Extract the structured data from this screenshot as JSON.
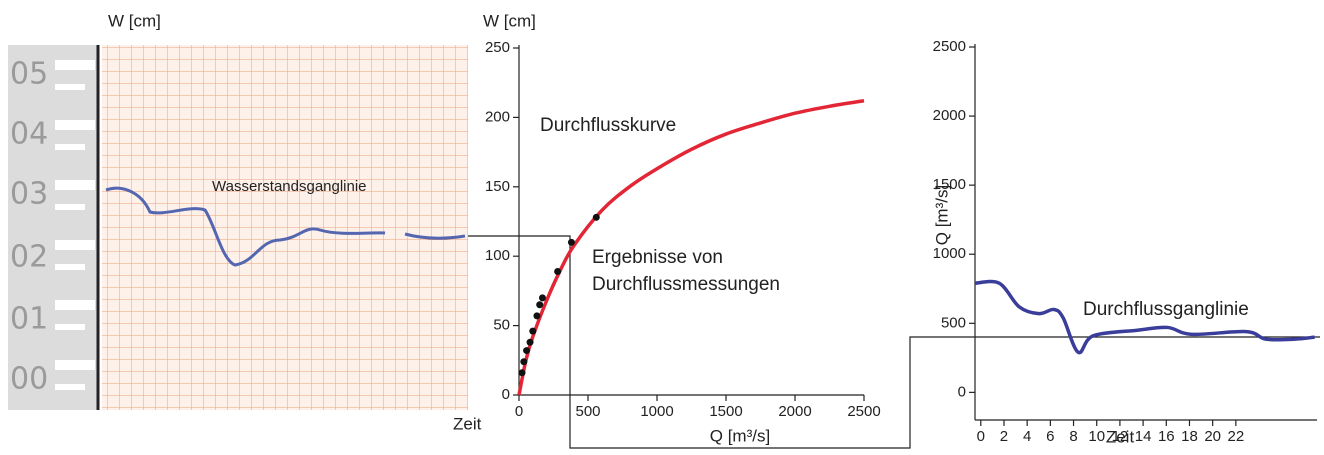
{
  "gauge": {
    "axis_label": "W [cm]",
    "staff_labels": [
      "05",
      "04",
      "03",
      "02",
      "01",
      "00"
    ],
    "annotation": "Wasserstandsganglinie",
    "time_label": "Zeit"
  },
  "chart_data": [
    {
      "type": "line",
      "y_label": "W [cm]",
      "x_label": "Q [m³/s]",
      "annotations": [
        "Durchflusskurve",
        "Ergebnisse von",
        "Durchflussmessungen"
      ],
      "xlim": [
        0,
        2500
      ],
      "xticks": [
        0,
        500,
        1000,
        1500,
        2000,
        2500
      ],
      "ylim": [
        0,
        250
      ],
      "yticks": [
        0,
        50,
        100,
        150,
        200,
        250
      ],
      "series": [
        {
          "kind": "line",
          "color": "#e32636",
          "x": [
            0,
            50,
            100,
            200,
            300,
            400,
            600,
            800,
            1000,
            1250,
            1500,
            1750,
            2000,
            2250,
            2500
          ],
          "values": [
            0,
            25,
            42,
            68,
            90,
            108,
            133,
            150,
            163,
            177,
            188,
            196,
            203,
            208,
            212
          ]
        },
        {
          "kind": "scatter",
          "color": "#111111",
          "x": [
            22,
            35,
            55,
            80,
            100,
            130,
            150,
            170,
            280,
            380,
            560
          ],
          "values": [
            16,
            24,
            32,
            38,
            46,
            57,
            65,
            70,
            89,
            110,
            128
          ]
        }
      ]
    },
    {
      "type": "line",
      "y_label": "Q [m³/s]",
      "x_label": "Zeit",
      "annotations": [
        "Durchflussganglinie"
      ],
      "xlim": [
        -0.5,
        29
      ],
      "xticks": [
        0,
        2,
        4,
        6,
        8,
        10,
        12,
        14,
        16,
        18,
        20,
        22
      ],
      "ylim": [
        -200,
        2500
      ],
      "yticks": [
        0,
        500,
        1000,
        1500,
        2000,
        2500
      ],
      "series": [
        {
          "kind": "line",
          "color": "#3a3d9a",
          "x": [
            -0.5,
            1.6,
            3.3,
            5,
            6.3,
            7.1,
            8.4,
            9.7,
            13.5,
            16.1,
            18.2,
            22.9,
            24.6,
            27.1,
            28.8
          ],
          "values": [
            790,
            790,
            620,
            570,
            600,
            540,
            290,
            410,
            450,
            470,
            420,
            440,
            385,
            385,
            400
          ]
        }
      ]
    }
  ]
}
